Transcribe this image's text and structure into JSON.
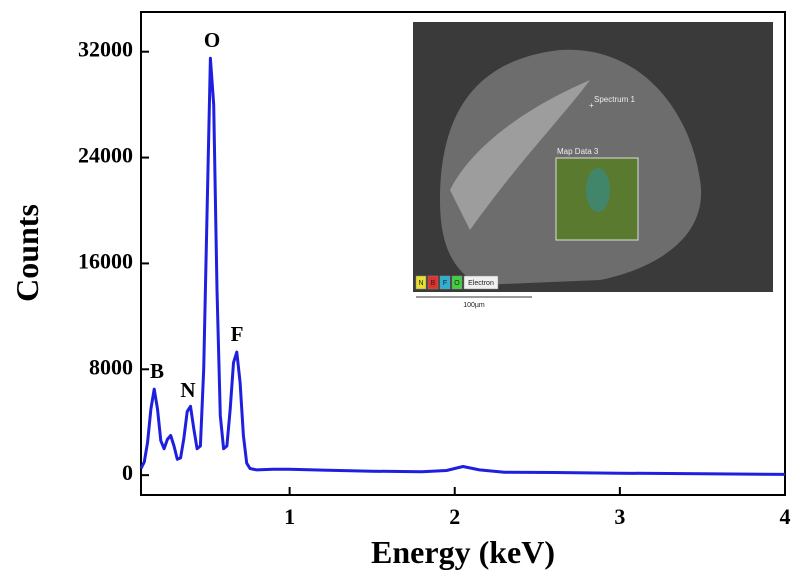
{
  "chart_data": {
    "type": "line",
    "xlabel": "Energy (keV)",
    "ylabel": "Counts",
    "x": [
      0.1,
      0.12,
      0.14,
      0.16,
      0.18,
      0.2,
      0.22,
      0.24,
      0.26,
      0.28,
      0.3,
      0.32,
      0.34,
      0.36,
      0.38,
      0.4,
      0.42,
      0.44,
      0.46,
      0.48,
      0.5,
      0.52,
      0.54,
      0.56,
      0.58,
      0.6,
      0.62,
      0.64,
      0.66,
      0.68,
      0.7,
      0.72,
      0.74,
      0.76,
      0.8,
      0.9,
      1.0,
      1.2,
      1.5,
      1.8,
      1.95,
      2.05,
      2.15,
      2.3,
      2.6,
      3.0,
      3.5,
      4.0
    ],
    "values": [
      500,
      1000,
      2500,
      5000,
      6500,
      5000,
      2600,
      2000,
      2700,
      3000,
      2200,
      1200,
      1300,
      2800,
      4800,
      5200,
      3500,
      2000,
      2200,
      8000,
      20000,
      31500,
      28000,
      14000,
      4500,
      2000,
      2200,
      5000,
      8500,
      9300,
      7000,
      3000,
      900,
      500,
      400,
      450,
      450,
      380,
      300,
      250,
      350,
      650,
      400,
      220,
      200,
      150,
      100,
      60
    ],
    "color": "#1f1fe0",
    "xlim": [
      0.1,
      4
    ],
    "ylim": [
      -1500,
      35000
    ],
    "xticks": [
      1,
      2,
      3,
      4
    ],
    "yticks": [
      0,
      8000,
      16000,
      24000,
      32000
    ],
    "annotations": [
      "B",
      "N",
      "O",
      "F"
    ]
  },
  "inset": {
    "spectrum": "Spectrum 1",
    "map": "Map Data 3",
    "legend": [
      "N",
      "B",
      "F",
      "O",
      "Electron"
    ],
    "scale": "100µm"
  }
}
